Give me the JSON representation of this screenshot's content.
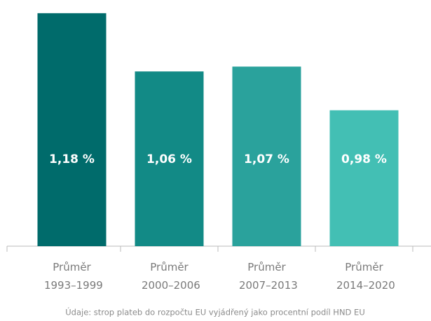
{
  "chart_data": {
    "type": "bar",
    "categories": [
      "Průměr 1993–1999",
      "Průměr 2000–2006",
      "Průměr 2007–2013",
      "Průměr 2014–2020"
    ],
    "values": [
      1.18,
      1.06,
      1.07,
      0.98
    ],
    "value_labels": [
      "1,18 %",
      "1,06 %",
      "1,07 %",
      "0,98 %"
    ],
    "colors": [
      "#006b6b",
      "#128a86",
      "#2aa29c",
      "#43bfb4"
    ],
    "ylim": [
      0.7,
      1.2
    ],
    "note": "Údaje: strop plateb do rozpočtu EU vyjádřený jako procentní podíl HND EU"
  }
}
